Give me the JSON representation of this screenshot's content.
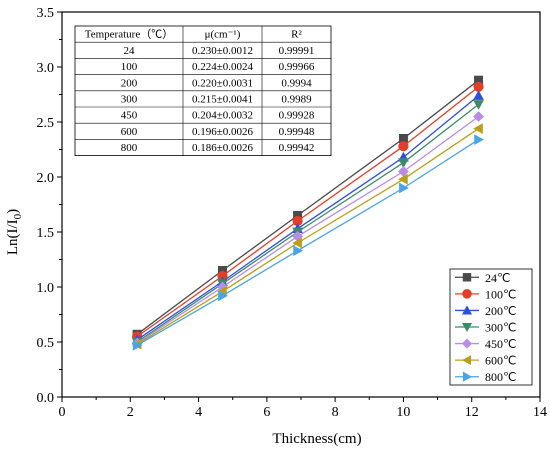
{
  "chart_data": {
    "type": "line",
    "xlabel": "Thickness(cm)",
    "ylabel": "Ln(I/I",
    "ylabel_sub": "0",
    "ylabel_close": ")",
    "xlim": [
      0,
      14
    ],
    "ylim": [
      0.0,
      3.5
    ],
    "xticks": [
      0,
      2,
      4,
      6,
      8,
      10,
      12,
      14
    ],
    "yticks": [
      0.0,
      0.5,
      1.0,
      1.5,
      2.0,
      2.5,
      3.0,
      3.5
    ],
    "x": [
      2.2,
      4.7,
      6.9,
      10.0,
      12.2
    ],
    "series": [
      {
        "name": "24℃",
        "marker": "square",
        "color": "#4a4a4a",
        "values": [
          0.57,
          1.15,
          1.65,
          2.35,
          2.88
        ]
      },
      {
        "name": "100℃",
        "marker": "circle",
        "color": "#e0402a",
        "values": [
          0.55,
          1.1,
          1.6,
          2.28,
          2.82
        ]
      },
      {
        "name": "200℃",
        "marker": "triangle-up",
        "color": "#2f4ee0",
        "values": [
          0.52,
          1.05,
          1.53,
          2.18,
          2.74
        ]
      },
      {
        "name": "300℃",
        "marker": "triangle-down",
        "color": "#3c8a6a",
        "values": [
          0.5,
          1.03,
          1.5,
          2.13,
          2.66
        ]
      },
      {
        "name": "450℃",
        "marker": "diamond",
        "color": "#b78de8",
        "values": [
          0.49,
          1.0,
          1.46,
          2.05,
          2.55
        ]
      },
      {
        "name": "600℃",
        "marker": "triangle-left",
        "color": "#b8a01a",
        "values": [
          0.48,
          0.96,
          1.4,
          1.98,
          2.44
        ]
      },
      {
        "name": "800℃",
        "marker": "triangle-right",
        "color": "#4aa4e6",
        "values": [
          0.47,
          0.92,
          1.33,
          1.9,
          2.34
        ]
      }
    ],
    "legend_position": "bottom-right",
    "table": {
      "headers": [
        "Temperature（℃）",
        "μ(cm⁻¹)",
        "R²"
      ],
      "rows": [
        [
          "24",
          "0.230±0.0012",
          "0.99991"
        ],
        [
          "100",
          "0.224±0.0024",
          "0.99966"
        ],
        [
          "200",
          "0.220±0.0031",
          "0.9994"
        ],
        [
          "300",
          "0.215±0.0041",
          "0.9989"
        ],
        [
          "450",
          "0.204±0.0032",
          "0.99928"
        ],
        [
          "600",
          "0.196±0.0026",
          "0.99948"
        ],
        [
          "800",
          "0.186±0.0026",
          "0.99942"
        ]
      ]
    }
  }
}
